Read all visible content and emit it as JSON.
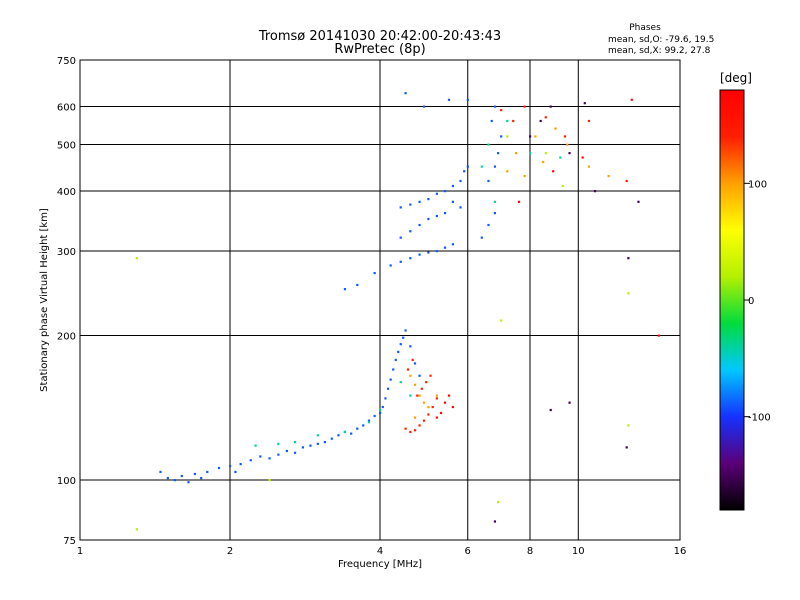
{
  "chart_data": {
    "type": "scatter",
    "title": "Tromsø 20141030 20:42:00-20:43:43",
    "subtitle": "RwPretec (8p)",
    "stats": {
      "heading": "Phases",
      "line1": "mean, sd,O: -79.6, 19.5",
      "line2": "mean, sd,X:  99.2, 27.8"
    },
    "xlabel": "Frequency [MHz]",
    "ylabel": "Stationary phase Virtual Height [km]",
    "x_scale": "log",
    "y_scale": "log",
    "xlim": [
      1,
      16
    ],
    "ylim": [
      75,
      750
    ],
    "x_ticks": [
      1,
      2,
      4,
      6,
      8,
      10,
      16
    ],
    "y_ticks": [
      75,
      100,
      200,
      300,
      400,
      500,
      600,
      750
    ],
    "grid": true,
    "colorbar": {
      "label": "[deg]",
      "range": [
        -180,
        180
      ],
      "ticks": [
        100,
        0,
        -100
      ],
      "colors": [
        "#000000",
        "#5b0078",
        "#1432ff",
        "#00c8ff",
        "#00dc3c",
        "#b4f000",
        "#ffff00",
        "#ffa000",
        "#ff1e00",
        "#ff0000"
      ]
    },
    "series": [
      {
        "phase_deg": -90,
        "points": [
          [
            1.45,
            104
          ],
          [
            1.5,
            101
          ],
          [
            1.55,
            100
          ],
          [
            1.6,
            102
          ],
          [
            1.65,
            99
          ],
          [
            1.7,
            103
          ],
          [
            1.75,
            101
          ],
          [
            1.8,
            104
          ],
          [
            1.9,
            106
          ],
          [
            2.0,
            107
          ],
          [
            2.05,
            104
          ],
          [
            2.1,
            108
          ],
          [
            2.2,
            110
          ],
          [
            2.3,
            112
          ],
          [
            2.4,
            111
          ],
          [
            2.5,
            113
          ],
          [
            2.6,
            115
          ],
          [
            2.7,
            114
          ],
          [
            2.8,
            117
          ],
          [
            2.9,
            118
          ],
          [
            3.0,
            119
          ],
          [
            3.1,
            120
          ],
          [
            3.2,
            122
          ],
          [
            3.3,
            124
          ],
          [
            3.4,
            126
          ],
          [
            3.5,
            125
          ],
          [
            3.6,
            128
          ],
          [
            3.7,
            130
          ],
          [
            3.8,
            133
          ],
          [
            3.9,
            136
          ],
          [
            4.0,
            138
          ],
          [
            4.05,
            142
          ],
          [
            4.1,
            148
          ],
          [
            4.15,
            155
          ],
          [
            4.2,
            162
          ],
          [
            4.25,
            170
          ],
          [
            4.3,
            178
          ],
          [
            4.35,
            185
          ],
          [
            4.4,
            192
          ],
          [
            4.45,
            198
          ],
          [
            4.5,
            205
          ],
          [
            4.6,
            190
          ],
          [
            4.7,
            175
          ],
          [
            4.8,
            165
          ],
          [
            4.2,
            280
          ],
          [
            4.4,
            285
          ],
          [
            4.6,
            290
          ],
          [
            4.8,
            295
          ],
          [
            5.0,
            298
          ],
          [
            5.2,
            300
          ],
          [
            5.4,
            305
          ],
          [
            5.6,
            310
          ],
          [
            4.4,
            320
          ],
          [
            4.6,
            330
          ],
          [
            4.8,
            340
          ],
          [
            5.0,
            350
          ],
          [
            5.2,
            355
          ],
          [
            5.4,
            360
          ],
          [
            4.4,
            370
          ],
          [
            4.6,
            375
          ],
          [
            4.8,
            380
          ],
          [
            5.0,
            385
          ],
          [
            5.2,
            395
          ],
          [
            5.4,
            400
          ],
          [
            5.6,
            410
          ],
          [
            5.8,
            420
          ],
          [
            5.9,
            440
          ],
          [
            6.0,
            450
          ],
          [
            5.6,
            380
          ],
          [
            5.8,
            370
          ],
          [
            6.4,
            320
          ],
          [
            6.6,
            340
          ],
          [
            6.8,
            360
          ],
          [
            6.6,
            420
          ],
          [
            6.8,
            450
          ],
          [
            6.9,
            480
          ],
          [
            7.0,
            520
          ],
          [
            6.7,
            560
          ],
          [
            6.8,
            600
          ],
          [
            4.9,
            600
          ],
          [
            5.5,
            620
          ],
          [
            6.0,
            620
          ],
          [
            4.5,
            640
          ],
          [
            3.9,
            270
          ],
          [
            3.6,
            255
          ],
          [
            3.4,
            250
          ]
        ]
      },
      {
        "phase_deg": -40,
        "points": [
          [
            2.25,
            118
          ],
          [
            2.5,
            119
          ],
          [
            2.7,
            120
          ],
          [
            3.0,
            124
          ],
          [
            3.4,
            126
          ],
          [
            3.8,
            132
          ],
          [
            4.0,
            140
          ],
          [
            4.4,
            160
          ],
          [
            4.6,
            150
          ],
          [
            6.4,
            450
          ],
          [
            6.6,
            500
          ],
          [
            7.2,
            560
          ],
          [
            6.8,
            380
          ],
          [
            8.0,
            480
          ],
          [
            9.2,
            470
          ]
        ]
      },
      {
        "phase_deg": 100,
        "points": [
          [
            4.6,
            165
          ],
          [
            4.7,
            158
          ],
          [
            4.8,
            150
          ],
          [
            4.9,
            145
          ],
          [
            5.0,
            142
          ],
          [
            4.7,
            135
          ],
          [
            5.2,
            150
          ],
          [
            7.2,
            440
          ],
          [
            7.5,
            480
          ],
          [
            7.8,
            430
          ],
          [
            8.2,
            520
          ],
          [
            8.5,
            460
          ],
          [
            9.0,
            540
          ],
          [
            9.5,
            500
          ],
          [
            10.5,
            450
          ],
          [
            11.5,
            430
          ]
        ]
      },
      {
        "phase_deg": 140,
        "points": [
          [
            4.5,
            128
          ],
          [
            4.6,
            126
          ],
          [
            4.7,
            127
          ],
          [
            4.8,
            130
          ],
          [
            4.9,
            133
          ],
          [
            5.0,
            137
          ],
          [
            5.1,
            142
          ],
          [
            5.2,
            148
          ],
          [
            4.75,
            150
          ],
          [
            4.85,
            155
          ],
          [
            4.95,
            160
          ],
          [
            5.05,
            165
          ],
          [
            4.55,
            170
          ],
          [
            4.65,
            178
          ],
          [
            7.0,
            590
          ],
          [
            7.4,
            560
          ],
          [
            7.8,
            600
          ],
          [
            8.6,
            570
          ],
          [
            9.4,
            520
          ],
          [
            10.5,
            560
          ],
          [
            12.5,
            420
          ]
        ]
      },
      {
        "phase_deg": 170,
        "points": [
          [
            5.3,
            138
          ],
          [
            5.4,
            145
          ],
          [
            5.5,
            150
          ],
          [
            5.2,
            135
          ],
          [
            5.6,
            142
          ],
          [
            7.6,
            380
          ],
          [
            8.9,
            440
          ],
          [
            10.2,
            470
          ],
          [
            12.8,
            620
          ],
          [
            14.5,
            200
          ]
        ]
      },
      {
        "phase_deg": -150,
        "points": [
          [
            8.0,
            520
          ],
          [
            8.4,
            560
          ],
          [
            8.8,
            600
          ],
          [
            9.6,
            480
          ],
          [
            10.8,
            400
          ],
          [
            12.6,
            290
          ],
          [
            13.2,
            380
          ],
          [
            10.3,
            610
          ],
          [
            12.5,
            117
          ],
          [
            8.8,
            140
          ],
          [
            9.6,
            145
          ],
          [
            6.8,
            82
          ]
        ]
      },
      {
        "phase_deg": 20,
        "points": [
          [
            1.3,
            79
          ],
          [
            1.3,
            290
          ],
          [
            2.4,
            100
          ],
          [
            7.0,
            215
          ],
          [
            7.2,
            520
          ],
          [
            8.6,
            480
          ],
          [
            9.3,
            410
          ],
          [
            12.6,
            245
          ],
          [
            12.6,
            130
          ],
          [
            6.9,
            90
          ]
        ]
      }
    ]
  }
}
